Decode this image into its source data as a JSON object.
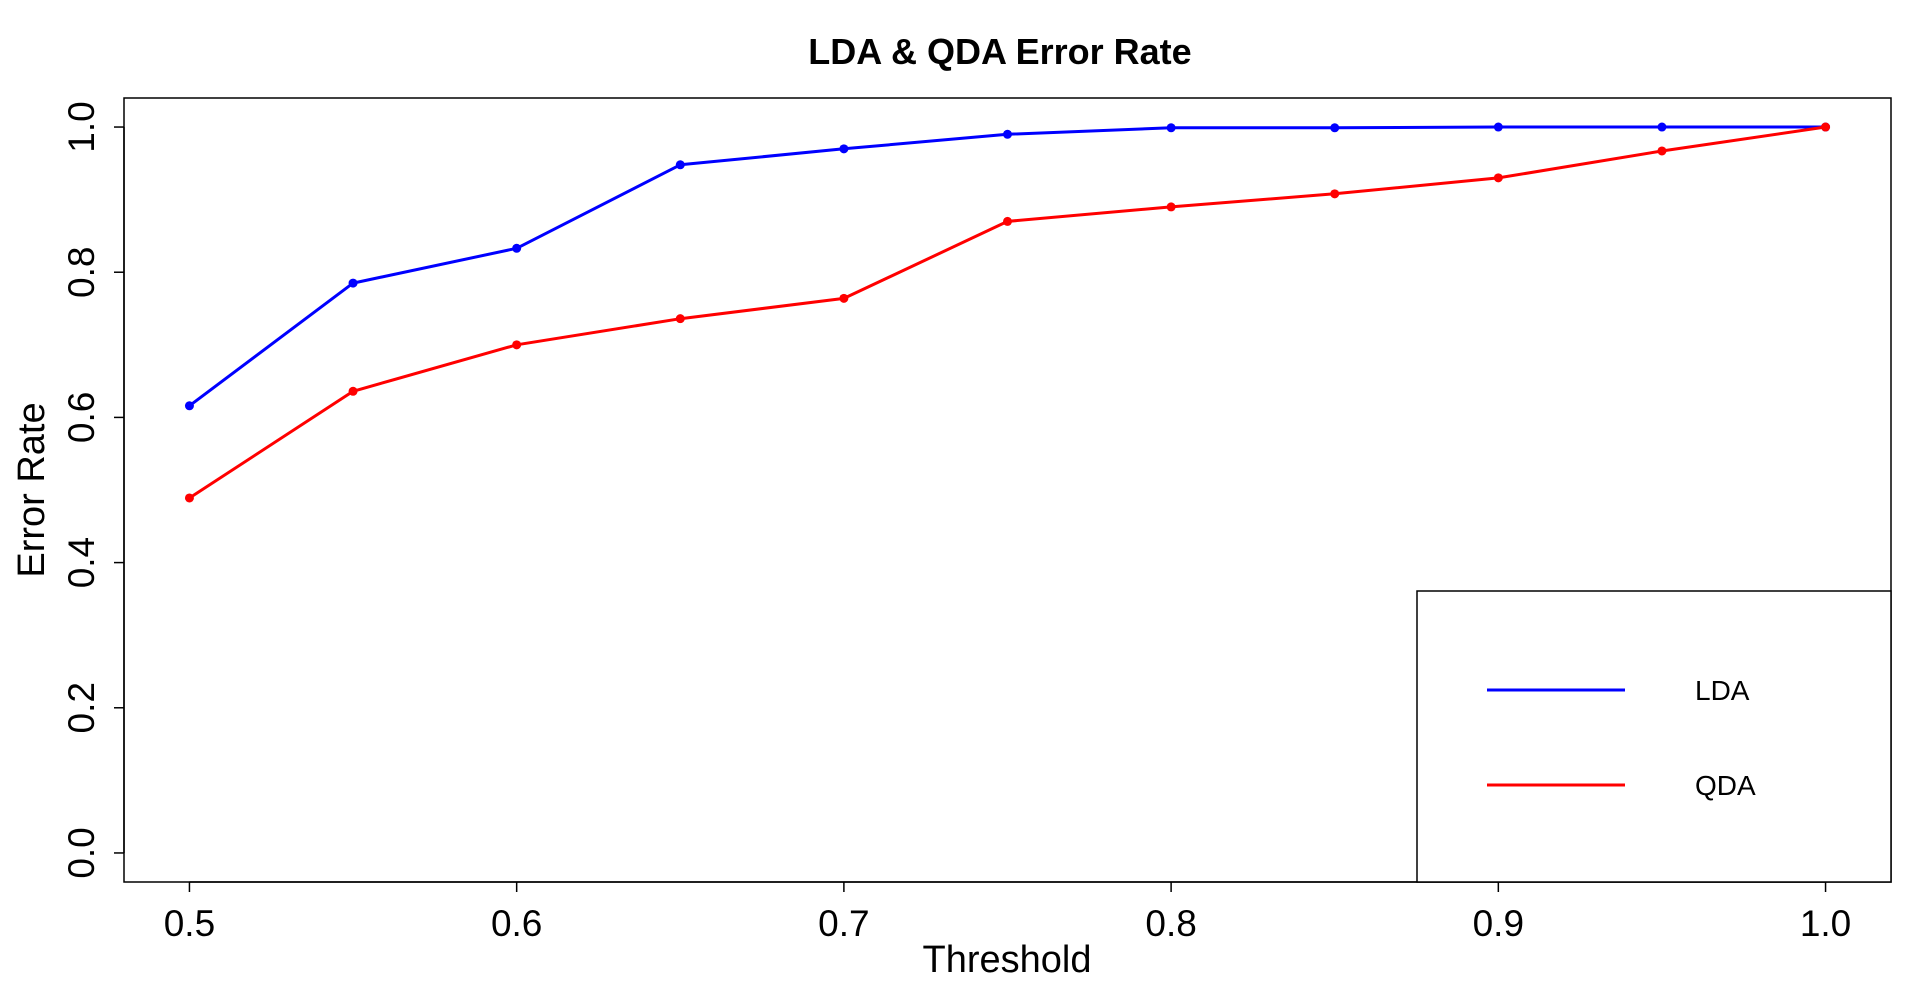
{
  "chart_data": {
    "type": "line",
    "title": "LDA & QDA Error Rate",
    "xlabel": "Threshold",
    "ylabel": "Error Rate",
    "x": [
      0.5,
      0.55,
      0.6,
      0.65,
      0.7,
      0.75,
      0.8,
      0.85,
      0.9,
      0.95,
      1.0
    ],
    "xticks": [
      "0.5",
      "0.6",
      "0.7",
      "0.8",
      "0.9",
      "1.0"
    ],
    "xtick_values": [
      0.5,
      0.6,
      0.7,
      0.8,
      0.9,
      1.0
    ],
    "yticks": [
      "0.0",
      "0.2",
      "0.4",
      "0.6",
      "0.8",
      "1.0"
    ],
    "ytick_values": [
      0.0,
      0.2,
      0.4,
      0.6,
      0.8,
      1.0
    ],
    "xlim": [
      0.48,
      1.02
    ],
    "ylim": [
      -0.04,
      1.04
    ],
    "grid": false,
    "legend_position": "bottom-right",
    "series": [
      {
        "name": "LDA",
        "color": "#0000ff",
        "values": [
          0.616,
          0.785,
          0.833,
          0.948,
          0.97,
          0.99,
          0.999,
          0.999,
          1.0,
          1.0,
          1.0
        ]
      },
      {
        "name": "QDA",
        "color": "#ff0000",
        "values": [
          0.489,
          0.636,
          0.7,
          0.736,
          0.764,
          0.87,
          0.89,
          0.908,
          0.93,
          0.967,
          1.0
        ]
      }
    ]
  }
}
